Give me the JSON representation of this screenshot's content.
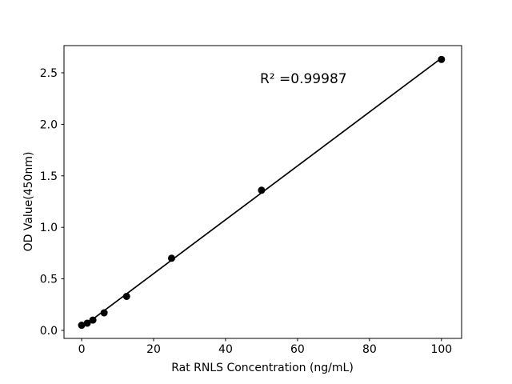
{
  "figure": {
    "background": "#ffffff"
  },
  "chart_data": {
    "type": "scatter",
    "title": "",
    "xlabel": "Rat RNLS Concentration (ng/mL)",
    "ylabel": "OD Value(450nm)",
    "annotation": "R² =0.99987",
    "r_squared": 0.99987,
    "x": [
      0,
      1.5625,
      3.125,
      6.25,
      12.5,
      25,
      50,
      100
    ],
    "y": [
      0.05,
      0.07,
      0.1,
      0.17,
      0.33,
      0.7,
      1.36,
      2.63
    ],
    "fit_line": {
      "type": "linear-regression",
      "from_x": 0,
      "to_x": 100
    },
    "xlim": [
      -4.9,
      105.6
    ],
    "ylim": [
      -0.078,
      2.764
    ],
    "xticks": {
      "values": [
        0,
        20,
        40,
        60,
        80,
        100
      ],
      "labels": [
        "0",
        "20",
        "40",
        "60",
        "80",
        "100"
      ]
    },
    "yticks": {
      "values": [
        0,
        0.5,
        1.0,
        1.5,
        2.0,
        2.5
      ],
      "labels": [
        "0.0",
        "0.5",
        "1.0",
        "1.5",
        "2.0",
        "2.5"
      ]
    },
    "grid": false,
    "legend": "none",
    "marker": {
      "shape": "circle",
      "radius": 4.5
    },
    "colors": {
      "marker": "#000000",
      "line": "#000000",
      "axes": "#000000",
      "text": "#000000",
      "background": "#ffffff"
    }
  }
}
